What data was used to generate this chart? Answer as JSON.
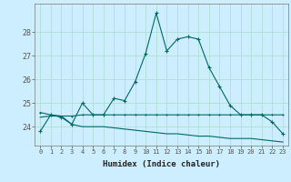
{
  "x": [
    0,
    1,
    2,
    3,
    4,
    5,
    6,
    7,
    8,
    9,
    10,
    11,
    12,
    13,
    14,
    15,
    16,
    17,
    18,
    19,
    20,
    21,
    22,
    23
  ],
  "series_main": {
    "y": [
      23.8,
      24.5,
      24.4,
      24.1,
      25.0,
      24.5,
      24.5,
      25.2,
      25.1,
      25.9,
      27.1,
      28.8,
      27.2,
      27.7,
      27.8,
      27.7,
      26.5,
      25.7,
      24.9,
      24.5,
      24.5,
      24.5,
      24.2,
      23.7
    ],
    "color": "#006868"
  },
  "series_upper_flat": {
    "y": [
      24.6,
      24.5,
      24.45,
      24.45,
      24.5,
      24.5,
      24.5,
      24.5,
      24.5,
      24.5,
      24.5,
      24.5,
      24.5,
      24.5,
      24.5,
      24.5,
      24.5,
      24.5,
      24.5,
      24.5,
      24.5,
      24.5,
      24.5,
      24.5
    ],
    "color": "#006868"
  },
  "series_lower_flat": {
    "y": [
      24.4,
      24.45,
      24.45,
      24.1,
      24.0,
      24.0,
      24.0,
      23.95,
      23.9,
      23.85,
      23.8,
      23.75,
      23.7,
      23.7,
      23.65,
      23.6,
      23.6,
      23.55,
      23.5,
      23.5,
      23.5,
      23.45,
      23.4,
      23.35
    ],
    "color": "#006868"
  },
  "bg_color": "#cceeff",
  "grid_color": "#aaddcc",
  "ylabel_ticks": [
    24,
    25,
    26,
    27,
    28
  ],
  "xlim": [
    -0.5,
    23.5
  ],
  "ylim": [
    23.2,
    29.2
  ],
  "xlabel": "Humidex (Indice chaleur)"
}
